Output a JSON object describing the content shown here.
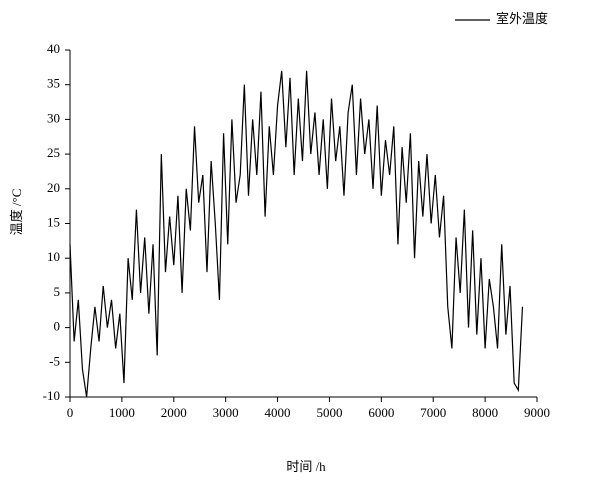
{
  "chart_data": {
    "type": "line",
    "x_label": "时间 /h",
    "y_label": "温度 /°C",
    "x": [
      0,
      80,
      160,
      240,
      320,
      400,
      480,
      560,
      640,
      720,
      800,
      880,
      960,
      1040,
      1120,
      1200,
      1280,
      1360,
      1440,
      1520,
      1600,
      1680,
      1760,
      1840,
      1920,
      2000,
      2080,
      2160,
      2240,
      2320,
      2400,
      2480,
      2560,
      2640,
      2720,
      2800,
      2880,
      2960,
      3040,
      3120,
      3200,
      3280,
      3360,
      3440,
      3520,
      3600,
      3680,
      3760,
      3840,
      3920,
      4000,
      4080,
      4160,
      4240,
      4320,
      4400,
      4480,
      4560,
      4640,
      4720,
      4800,
      4880,
      4960,
      5040,
      5120,
      5200,
      5280,
      5360,
      5440,
      5520,
      5600,
      5680,
      5760,
      5840,
      5920,
      6000,
      6080,
      6160,
      6240,
      6320,
      6400,
      6480,
      6560,
      6640,
      6720,
      6800,
      6880,
      6960,
      7040,
      7120,
      7200,
      7280,
      7360,
      7440,
      7520,
      7600,
      7680,
      7760,
      7840,
      7920,
      8000,
      8080,
      8160,
      8240,
      8320,
      8400,
      8480,
      8560,
      8640,
      8720
    ],
    "series": [
      {
        "name": "室外温度",
        "color": "#000000",
        "values": [
          12,
          -2,
          4,
          -6,
          -10,
          -3,
          3,
          -2,
          6,
          0,
          4,
          -3,
          2,
          -8,
          10,
          4,
          17,
          5,
          13,
          2,
          12,
          -4,
          25,
          8,
          16,
          9,
          19,
          5,
          20,
          14,
          29,
          18,
          22,
          8,
          24,
          15,
          4,
          28,
          12,
          30,
          18,
          22,
          35,
          19,
          30,
          22,
          34,
          16,
          29,
          22,
          32,
          37,
          26,
          36,
          22,
          33,
          24,
          37,
          25,
          31,
          22,
          30,
          20,
          33,
          24,
          29,
          19,
          31,
          35,
          22,
          33,
          25,
          30,
          20,
          32,
          19,
          27,
          22,
          29,
          12,
          26,
          18,
          28,
          10,
          24,
          16,
          25,
          15,
          22,
          13,
          19,
          3,
          -3,
          13,
          5,
          17,
          0,
          14,
          -1,
          10,
          -3,
          7,
          3,
          -3,
          12,
          -1,
          6,
          -8,
          -9,
          3
        ]
      }
    ],
    "xlim": [
      0,
      9000
    ],
    "xticks": [
      0,
      1000,
      2000,
      3000,
      4000,
      5000,
      6000,
      7000,
      8000,
      9000
    ],
    "ylim": [
      -10,
      40
    ],
    "yticks": [
      -10,
      -5,
      0,
      5,
      10,
      15,
      20,
      25,
      30,
      35,
      40
    ],
    "legend": "top-right"
  }
}
